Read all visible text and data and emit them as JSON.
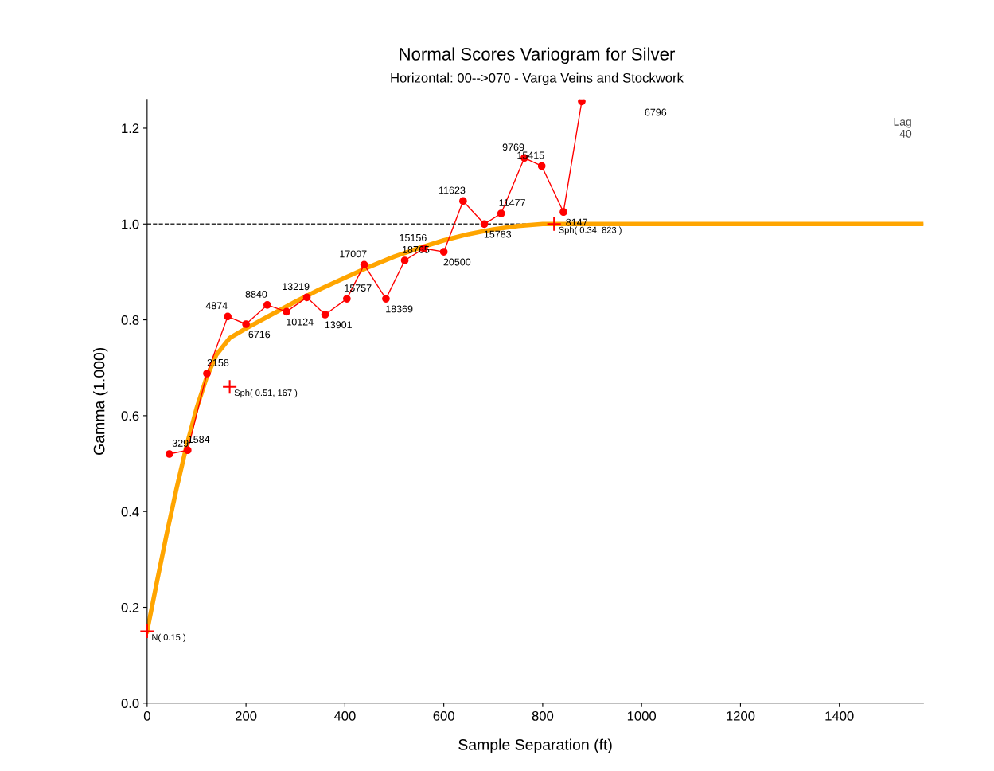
{
  "chart_data": {
    "type": "line",
    "title": "Normal Scores Variogram for Silver",
    "subtitle": "Horizontal: 00-->070 - Varga Veins and Stockwork",
    "xlabel": "Sample Separation (ft)",
    "ylabel": "Gamma (1.000)",
    "xlim": [
      0,
      1570
    ],
    "ylim": [
      0,
      1.26
    ],
    "xticks": [
      0,
      200,
      400,
      600,
      800,
      1000,
      1200,
      1400
    ],
    "yticks": [
      {
        "value": 0,
        "label": "0.0"
      },
      {
        "value": 0.2,
        "label": "0.2"
      },
      {
        "value": 0.4,
        "label": "0.4"
      },
      {
        "value": 0.6,
        "label": "0.6"
      },
      {
        "value": 0.8,
        "label": "0.8"
      },
      {
        "value": 1.0,
        "label": "1.0"
      },
      {
        "value": 1.2,
        "label": "1.2"
      }
    ],
    "grid": false,
    "legend": false,
    "series": [
      {
        "color": "#ff0000",
        "marker": "circle",
        "line_style": "solid",
        "x": [
          45,
          82,
          121,
          163,
          200,
          243,
          282,
          323,
          360,
          404,
          439,
          483,
          521,
          560,
          600,
          639,
          682,
          716,
          763,
          798,
          842,
          879
        ],
        "values": [
          0.52,
          0.528,
          0.688,
          0.807,
          0.791,
          0.831,
          0.817,
          0.847,
          0.811,
          0.844,
          0.915,
          0.844,
          0.924,
          0.949,
          0.942,
          1.048,
          1.0,
          1.022,
          1.138,
          1.121,
          1.025,
          1.256
        ]
      },
      {
        "color": "#ffa500",
        "marker": "none",
        "line_style": "solid",
        "x": [
          0,
          20,
          40,
          60,
          80,
          100,
          120,
          140,
          167,
          200,
          250,
          300,
          350,
          400,
          450,
          500,
          550,
          600,
          650,
          700,
          750,
          800,
          823,
          1570
        ],
        "values": [
          0.15,
          0.254,
          0.355,
          0.45,
          0.538,
          0.615,
          0.679,
          0.727,
          0.762,
          0.782,
          0.81,
          0.838,
          0.864,
          0.888,
          0.911,
          0.932,
          0.95,
          0.966,
          0.979,
          0.989,
          0.996,
          1.0,
          1.0,
          1.0
        ]
      },
      {
        "type": "scatter",
        "color": "#ff0000",
        "marker": "cross",
        "x": [
          0,
          167,
          823
        ],
        "values": [
          0.15,
          0.66,
          1.0
        ]
      }
    ],
    "ref_lines": [
      {
        "axis": "y",
        "value": 1.0,
        "color": "#333333",
        "line_style": "dashed"
      }
    ],
    "annotations": [
      {
        "text": "N( 0.15 )",
        "x": 0,
        "y": 0.15
      },
      {
        "text": "Sph( 0.51, 167 )",
        "x": 167,
        "y": 0.66
      },
      {
        "text": "Sph( 0.34, 823 )",
        "x": 823,
        "y": 1.0
      },
      {
        "text": "329",
        "x": 45,
        "y": 0.52
      },
      {
        "text": "1584",
        "x": 82,
        "y": 0.528
      },
      {
        "text": "2158",
        "x": 121,
        "y": 0.688
      },
      {
        "text": "4874",
        "x": 163,
        "y": 0.807
      },
      {
        "text": "6716",
        "x": 200,
        "y": 0.791
      },
      {
        "text": "8840",
        "x": 243,
        "y": 0.831
      },
      {
        "text": "10124",
        "x": 282,
        "y": 0.817
      },
      {
        "text": "13219",
        "x": 323,
        "y": 0.847
      },
      {
        "text": "13901",
        "x": 360,
        "y": 0.811
      },
      {
        "text": "15757",
        "x": 404,
        "y": 0.844
      },
      {
        "text": "17007",
        "x": 439,
        "y": 0.915
      },
      {
        "text": "18369",
        "x": 483,
        "y": 0.844
      },
      {
        "text": "18765",
        "x": 521,
        "y": 0.924
      },
      {
        "text": "15156",
        "x": 560,
        "y": 0.949
      },
      {
        "text": "20500",
        "x": 600,
        "y": 0.942
      },
      {
        "text": "11623",
        "x": 639,
        "y": 1.048
      },
      {
        "text": "15783",
        "x": 682,
        "y": 1.0
      },
      {
        "text": "11477",
        "x": 716,
        "y": 1.022
      },
      {
        "text": "9769",
        "x": 763,
        "y": 1.138
      },
      {
        "text": "15415",
        "x": 798,
        "y": 1.121
      },
      {
        "text": "8147",
        "x": 842,
        "y": 1.025
      },
      "6796",
      "Lag\n40"
    ]
  }
}
